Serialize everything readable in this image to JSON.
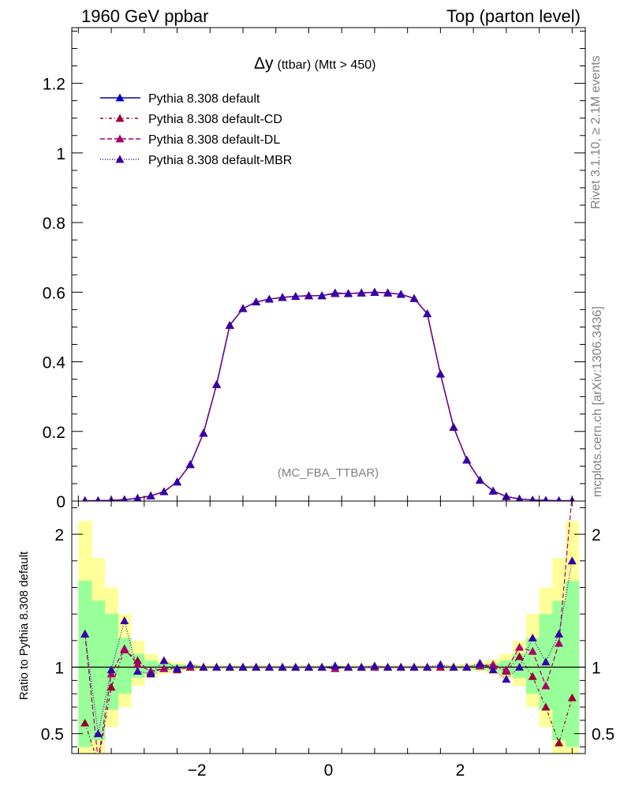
{
  "header": {
    "left": "1960 GeV ppbar",
    "right": "Top (parton level)"
  },
  "side_labels": {
    "rivet": "Rivet 3.1.10, ≥ 2.1M events",
    "source": "mcplots.cern.ch [arXiv:1306.3436]"
  },
  "chart_data": [
    {
      "type": "line",
      "title": "Δy (ttbar) (Mtt > 450)",
      "title_main": "Δy",
      "title_sub": "(ttbar) (Mtt > 450)",
      "watermark": "(MC_FBA_TTBAR)",
      "xlabel": "",
      "ylabel": "",
      "xlim": [
        -3.9,
        3.9
      ],
      "ylim": [
        0,
        1.36
      ],
      "yticks": [
        0,
        0.2,
        0.4,
        0.6,
        0.8,
        1,
        1.2
      ],
      "ytick_labels": [
        "0",
        "0.2",
        "0.4",
        "0.6",
        "0.8",
        "1",
        "1.2"
      ],
      "legend_position": "top-left",
      "x": [
        -3.7,
        -3.5,
        -3.3,
        -3.1,
        -2.9,
        -2.7,
        -2.5,
        -2.3,
        -2.1,
        -1.9,
        -1.7,
        -1.5,
        -1.3,
        -1.1,
        -0.9,
        -0.7,
        -0.5,
        -0.3,
        -0.1,
        0.1,
        0.3,
        0.5,
        0.7,
        0.9,
        1.1,
        1.3,
        1.5,
        1.7,
        1.9,
        2.1,
        2.3,
        2.5,
        2.7,
        2.9,
        3.1,
        3.3,
        3.5,
        3.7
      ],
      "series": [
        {
          "name": "Pythia 8.308 default",
          "color": "#0000cc",
          "dash": "",
          "values": [
            0.001,
            0.001,
            0.002,
            0.004,
            0.008,
            0.015,
            0.027,
            0.055,
            0.105,
            0.195,
            0.335,
            0.505,
            0.553,
            0.572,
            0.58,
            0.585,
            0.588,
            0.59,
            0.59,
            0.598,
            0.596,
            0.598,
            0.6,
            0.598,
            0.594,
            0.582,
            0.538,
            0.365,
            0.212,
            0.118,
            0.06,
            0.029,
            0.013,
            0.006,
            0.003,
            0.002,
            0.001,
            0.001
          ]
        },
        {
          "name": "Pythia 8.308 default-CD",
          "color": "#990033",
          "dash": "4,3,1,3",
          "values": [
            0.001,
            0.001,
            0.002,
            0.004,
            0.008,
            0.015,
            0.027,
            0.055,
            0.105,
            0.195,
            0.335,
            0.505,
            0.553,
            0.572,
            0.58,
            0.585,
            0.588,
            0.59,
            0.59,
            0.596,
            0.596,
            0.598,
            0.6,
            0.598,
            0.594,
            0.582,
            0.538,
            0.365,
            0.212,
            0.118,
            0.06,
            0.029,
            0.013,
            0.006,
            0.003,
            0.002,
            0.001,
            0.001
          ]
        },
        {
          "name": "Pythia 8.308 default-DL",
          "color": "#aa0066",
          "dash": "6,3",
          "values": [
            0.001,
            0.001,
            0.002,
            0.004,
            0.008,
            0.015,
            0.027,
            0.055,
            0.105,
            0.195,
            0.335,
            0.505,
            0.553,
            0.572,
            0.58,
            0.585,
            0.588,
            0.59,
            0.59,
            0.596,
            0.596,
            0.598,
            0.6,
            0.598,
            0.594,
            0.582,
            0.538,
            0.365,
            0.212,
            0.118,
            0.06,
            0.029,
            0.013,
            0.006,
            0.003,
            0.002,
            0.001,
            0.001
          ]
        },
        {
          "name": "Pythia 8.308 default-MBR",
          "color": "#3300aa",
          "dash": "1,2",
          "values": [
            0.001,
            0.001,
            0.002,
            0.004,
            0.008,
            0.015,
            0.027,
            0.055,
            0.105,
            0.195,
            0.335,
            0.505,
            0.553,
            0.572,
            0.58,
            0.585,
            0.588,
            0.59,
            0.59,
            0.598,
            0.596,
            0.598,
            0.6,
            0.598,
            0.594,
            0.582,
            0.538,
            0.365,
            0.212,
            0.118,
            0.06,
            0.029,
            0.013,
            0.006,
            0.003,
            0.002,
            0.001,
            0.001
          ]
        }
      ]
    },
    {
      "type": "line",
      "title": "",
      "xlabel": "",
      "ylabel": "Ratio to Pythia 8.308 default",
      "xlim": [
        -3.9,
        3.9
      ],
      "ylim": [
        0.35,
        2.25
      ],
      "xticks": [
        -2,
        0,
        2
      ],
      "xtick_labels": [
        "−2",
        "0",
        "2"
      ],
      "yticks": [
        0.5,
        1,
        2
      ],
      "ytick_labels": [
        "0.5",
        "1",
        "2"
      ],
      "reference_line": 1,
      "x": [
        -3.7,
        -3.5,
        -3.3,
        -3.1,
        -2.9,
        -2.7,
        -2.5,
        -2.3,
        -2.1,
        -1.9,
        -1.7,
        -1.5,
        -1.3,
        -1.1,
        -0.9,
        -0.7,
        -0.5,
        -0.3,
        -0.1,
        0.1,
        0.3,
        0.5,
        0.7,
        0.9,
        1.1,
        1.3,
        1.5,
        1.7,
        1.9,
        2.1,
        2.3,
        2.5,
        2.7,
        2.9,
        3.1,
        3.3,
        3.5,
        3.7
      ],
      "band_green": [
        [
          0.4,
          1.65
        ],
        [
          0.45,
          1.5
        ],
        [
          0.68,
          1.4
        ],
        [
          0.8,
          1.22
        ],
        [
          0.92,
          1.1
        ],
        [
          0.95,
          1.05
        ],
        [
          0.97,
          1.03
        ],
        [
          0.98,
          1.02
        ],
        [
          0.985,
          1.015
        ],
        [
          0.99,
          1.01
        ],
        [
          0.99,
          1.01
        ],
        [
          0.99,
          1.01
        ],
        [
          0.99,
          1.01
        ],
        [
          0.99,
          1.01
        ],
        [
          0.99,
          1.01
        ],
        [
          0.99,
          1.01
        ],
        [
          0.99,
          1.01
        ],
        [
          0.99,
          1.01
        ],
        [
          0.99,
          1.01
        ],
        [
          0.99,
          1.01
        ],
        [
          0.99,
          1.01
        ],
        [
          0.99,
          1.01
        ],
        [
          0.99,
          1.01
        ],
        [
          0.99,
          1.01
        ],
        [
          0.99,
          1.01
        ],
        [
          0.99,
          1.01
        ],
        [
          0.99,
          1.01
        ],
        [
          0.99,
          1.01
        ],
        [
          0.99,
          1.01
        ],
        [
          0.985,
          1.015
        ],
        [
          0.98,
          1.02
        ],
        [
          0.97,
          1.03
        ],
        [
          0.95,
          1.05
        ],
        [
          0.92,
          1.1
        ],
        [
          0.8,
          1.22
        ],
        [
          0.68,
          1.4
        ],
        [
          0.45,
          1.5
        ],
        [
          0.4,
          1.65
        ]
      ],
      "band_yellow": [
        [
          0.35,
          2.1
        ],
        [
          0.35,
          1.82
        ],
        [
          0.55,
          1.6
        ],
        [
          0.7,
          1.4
        ],
        [
          0.86,
          1.2
        ],
        [
          0.92,
          1.1
        ],
        [
          0.95,
          1.06
        ],
        [
          0.97,
          1.04
        ],
        [
          0.975,
          1.025
        ],
        [
          0.98,
          1.02
        ],
        [
          0.985,
          1.015
        ],
        [
          0.985,
          1.015
        ],
        [
          0.985,
          1.015
        ],
        [
          0.985,
          1.015
        ],
        [
          0.985,
          1.015
        ],
        [
          0.985,
          1.015
        ],
        [
          0.985,
          1.015
        ],
        [
          0.985,
          1.015
        ],
        [
          0.985,
          1.015
        ],
        [
          0.985,
          1.015
        ],
        [
          0.985,
          1.015
        ],
        [
          0.985,
          1.015
        ],
        [
          0.985,
          1.015
        ],
        [
          0.985,
          1.015
        ],
        [
          0.985,
          1.015
        ],
        [
          0.985,
          1.015
        ],
        [
          0.985,
          1.015
        ],
        [
          0.985,
          1.015
        ],
        [
          0.98,
          1.02
        ],
        [
          0.975,
          1.025
        ],
        [
          0.97,
          1.04
        ],
        [
          0.95,
          1.06
        ],
        [
          0.92,
          1.1
        ],
        [
          0.86,
          1.2
        ],
        [
          0.7,
          1.4
        ],
        [
          0.55,
          1.6
        ],
        [
          0.35,
          1.82
        ],
        [
          0.35,
          2.1
        ]
      ],
      "series": [
        {
          "name": "Pythia 8.308 default-CD",
          "color": "#990033",
          "dash": "4,3,1,3",
          "values": [
            0.58,
            0.28,
            0.85,
            1.13,
            1.05,
            0.96,
            0.99,
            0.98,
            1.0,
            1.0,
            1.0,
            1.0,
            1.0,
            1.0,
            1.0,
            1.0,
            1.0,
            1.0,
            1.0,
            0.99,
            1.0,
            1.0,
            1.0,
            1.0,
            1.0,
            1.0,
            1.0,
            1.0,
            1.0,
            1.0,
            1.01,
            1.01,
            0.97,
            1.08,
            0.93,
            0.7,
            0.43,
            0.77
          ]
        },
        {
          "name": "Pythia 8.308 default-DL",
          "color": "#aa0066",
          "dash": "6,3",
          "values": [
            1.25,
            0.3,
            0.95,
            1.14,
            1.02,
            0.97,
            0.99,
            0.99,
            1.0,
            1.0,
            1.0,
            1.0,
            1.0,
            1.0,
            1.0,
            1.0,
            1.0,
            1.0,
            1.0,
            0.99,
            1.0,
            1.0,
            1.0,
            1.0,
            1.0,
            1.0,
            1.0,
            1.0,
            1.0,
            1.0,
            1.01,
            1.02,
            0.98,
            1.15,
            1.12,
            0.86,
            1.18,
            2.3
          ]
        },
        {
          "name": "Pythia 8.308 default-MBR",
          "color": "#3300aa",
          "dash": "1,2",
          "values": [
            1.25,
            0.5,
            0.98,
            1.35,
            0.97,
            0.95,
            1.05,
            0.99,
            1.02,
            1.0,
            1.0,
            1.0,
            1.0,
            1.0,
            1.0,
            1.0,
            1.0,
            1.0,
            1.0,
            1.01,
            1.0,
            1.0,
            1.01,
            1.0,
            1.0,
            1.0,
            1.0,
            1.02,
            1.0,
            1.0,
            1.03,
            0.98,
            0.91,
            1.0,
            1.22,
            1.04,
            1.25,
            1.8
          ]
        }
      ]
    }
  ]
}
